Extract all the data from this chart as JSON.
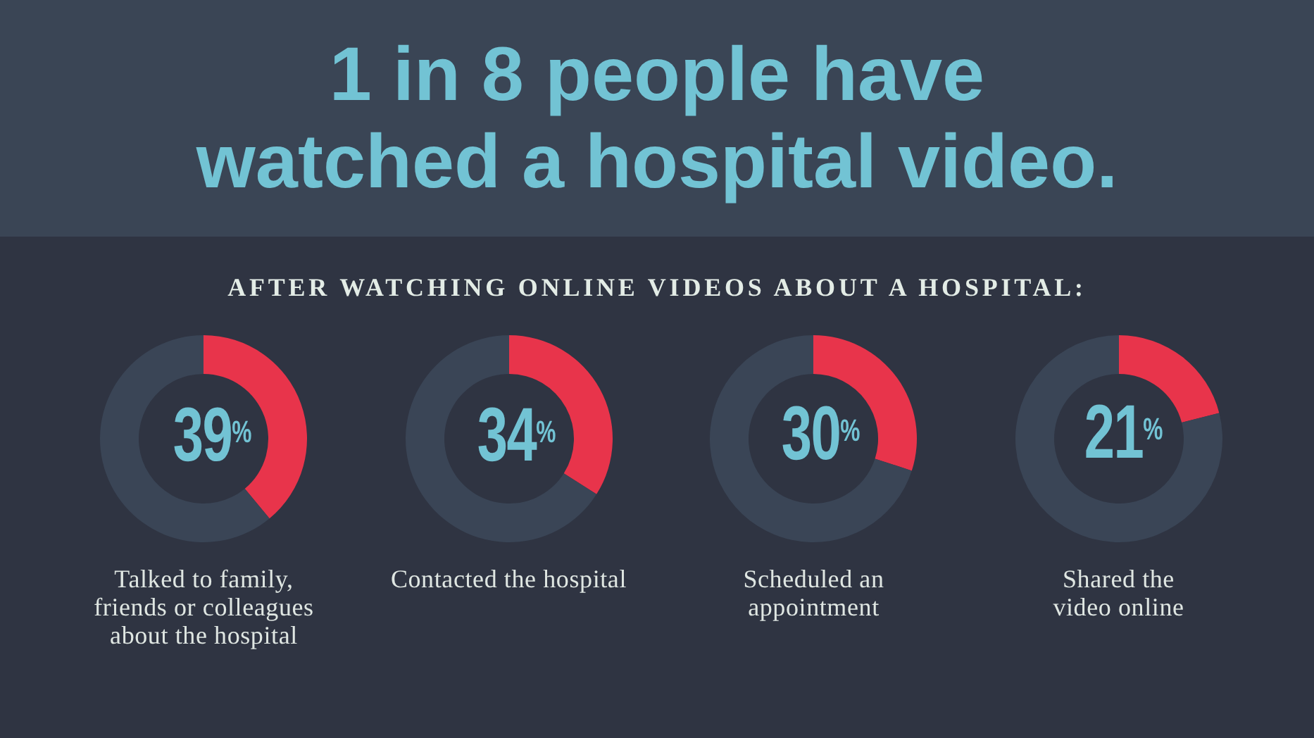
{
  "chart_data": [
    {
      "type": "other",
      "title": "1 in 8 people have watched a hospital video.",
      "subtitle": "AFTER WATCHING ONLINE VIDEOS ABOUT A HOSPITAL:"
    },
    {
      "type": "donut",
      "categories": [
        null,
        null
      ],
      "values": [
        39,
        61
      ],
      "colors": [
        "#e8344b",
        "#3a4556"
      ],
      "value_labels": [
        "39$^{%}$",
        null
      ],
      "xlabel": "Talked to family, friends or colleagues about the hospital"
    },
    {
      "type": "donut",
      "categories": [
        null,
        null
      ],
      "values": [
        34,
        66
      ],
      "colors": [
        "#e8344b",
        "#3a4556"
      ],
      "value_labels": [
        "34$^{%}$",
        null
      ],
      "xlabel": "Contacted the hospital"
    },
    {
      "type": "donut",
      "categories": [
        null,
        null
      ],
      "values": [
        30,
        70
      ],
      "colors": [
        "#e8344b",
        "#3a4556"
      ],
      "value_labels": [
        "30$^{%}$",
        null
      ],
      "xlabel": "Scheduled an appointment"
    },
    {
      "type": "donut",
      "categories": [
        null,
        null
      ],
      "values": [
        21,
        79
      ],
      "colors": [
        "#e8344b",
        "#3a4556"
      ],
      "value_labels": [
        "21$^{%}$",
        null
      ],
      "xlabel": "Shared the video online"
    }
  ]
}
